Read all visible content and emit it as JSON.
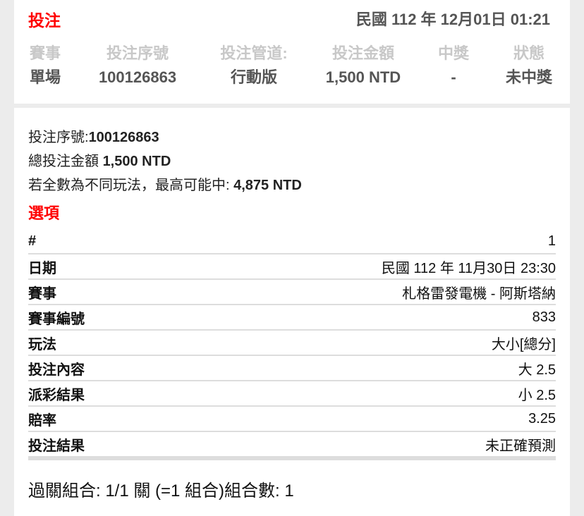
{
  "header": {
    "title": "投注",
    "datetime": "民國 112 年 12月01日 01:21"
  },
  "summary": {
    "columns": [
      {
        "label": "賽事",
        "value": "單場"
      },
      {
        "label": "投注序號",
        "value": "100126863"
      },
      {
        "label": "投注管道:",
        "value": "行動版"
      },
      {
        "label": "投注金額",
        "value": "1,500 NTD"
      },
      {
        "label": "中獎",
        "value": "-"
      },
      {
        "label": "狀態",
        "value": "未中獎"
      }
    ]
  },
  "detail": {
    "serial_label": "投注序號:",
    "serial_value": "100126863",
    "total_label": "總投注金額 ",
    "total_value": "1,500 NTD",
    "max_label": "若全數為不同玩法，最高可能中: ",
    "max_value": "4,875 NTD",
    "section_title": "選項",
    "rows": [
      {
        "k": "#",
        "v": "1"
      },
      {
        "k": "日期",
        "v": "民國 112 年 11月30日 23:30"
      },
      {
        "k": "賽事",
        "v": "札格雷發電機 - 阿斯塔納"
      },
      {
        "k": "賽事編號",
        "v": "833"
      },
      {
        "k": "玩法",
        "v": "大小[總分]"
      },
      {
        "k": "投注內容",
        "v": "大 2.5"
      },
      {
        "k": "派彩結果",
        "v": "小 2.5"
      },
      {
        "k": "賠率",
        "v": "3.25"
      },
      {
        "k": "投注結果",
        "v": "未正確預測"
      }
    ],
    "combo": "過關組合: 1/1 關 (=1 組合)組合數: 1"
  }
}
